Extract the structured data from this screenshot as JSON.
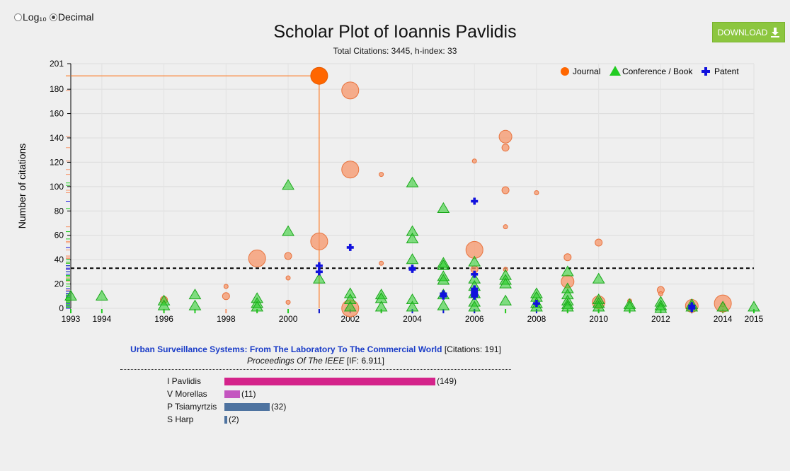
{
  "scale_toggle": {
    "options": [
      {
        "label": "Log₁₀",
        "checked": false
      },
      {
        "label": "Decimal",
        "checked": true
      }
    ]
  },
  "header": {
    "title": "Scholar Plot of Ioannis Pavlidis",
    "subtitle": "Total Citations: 3445, h-index: 33"
  },
  "download": {
    "label": "DOWNLOAD"
  },
  "chart_data": {
    "type": "scatter",
    "title": "Scholar Plot of Ioannis Pavlidis",
    "ylabel": "Number of citations",
    "xlabel": "",
    "xlim": [
      1993,
      2015
    ],
    "ylim": [
      0,
      201
    ],
    "x_ticks": [
      1993,
      1994,
      1996,
      1998,
      2000,
      2002,
      2004,
      2006,
      2008,
      2010,
      2012,
      2014,
      2015
    ],
    "y_ticks": [
      0,
      20,
      40,
      60,
      80,
      100,
      120,
      140,
      160,
      180,
      201
    ],
    "h_index_line": 33,
    "legend_position": "top-right",
    "grid": true,
    "colors": {
      "journal": "#f7956a",
      "journal_selected": "#ff6600",
      "conference": "#22cc22",
      "patent": "#1111dd",
      "hline": "#000000"
    },
    "series": [
      {
        "name": "Journal",
        "points": [
          [
            1996,
            7,
            5
          ],
          [
            1998,
            10,
            5
          ],
          [
            1998,
            18,
            3
          ],
          [
            1999,
            41,
            12
          ],
          [
            2000,
            43,
            5
          ],
          [
            2000,
            25,
            3
          ],
          [
            2000,
            5,
            3
          ],
          [
            2001,
            55,
            12
          ],
          [
            2002,
            179,
            12
          ],
          [
            2002,
            114,
            12
          ],
          [
            2002,
            0,
            12
          ],
          [
            2003,
            110,
            3
          ],
          [
            2003,
            37,
            3
          ],
          [
            2006,
            48,
            12
          ],
          [
            2006,
            32,
            5
          ],
          [
            2006,
            121,
            3
          ],
          [
            2007,
            141,
            9
          ],
          [
            2007,
            132,
            5
          ],
          [
            2007,
            97,
            5
          ],
          [
            2007,
            67,
            3
          ],
          [
            2007,
            32,
            3
          ],
          [
            2008,
            95,
            3
          ],
          [
            2009,
            42,
            5
          ],
          [
            2009,
            22,
            9
          ],
          [
            2010,
            54,
            5
          ],
          [
            2010,
            5,
            9
          ],
          [
            2011,
            6,
            3
          ],
          [
            2012,
            15,
            5
          ],
          [
            2012,
            12,
            3
          ],
          [
            2013,
            2,
            9
          ],
          [
            2014,
            4,
            12
          ],
          [
            2014,
            3,
            3
          ]
        ]
      },
      {
        "name": "Journal (selected)",
        "points": [
          [
            2001,
            191,
            12
          ]
        ]
      },
      {
        "name": "Conference / Book",
        "points": [
          [
            1993,
            10
          ],
          [
            1994,
            10
          ],
          [
            1996,
            6
          ],
          [
            1996,
            2
          ],
          [
            1997,
            11
          ],
          [
            1997,
            2
          ],
          [
            1999,
            8
          ],
          [
            1999,
            4
          ],
          [
            1999,
            1
          ],
          [
            2000,
            101
          ],
          [
            2000,
            63
          ],
          [
            2001,
            24
          ],
          [
            2002,
            12
          ],
          [
            2002,
            7
          ],
          [
            2002,
            1
          ],
          [
            2003,
            11
          ],
          [
            2003,
            8
          ],
          [
            2003,
            1
          ],
          [
            2004,
            103
          ],
          [
            2004,
            63
          ],
          [
            2004,
            57
          ],
          [
            2004,
            40
          ],
          [
            2004,
            7
          ],
          [
            2004,
            1
          ],
          [
            2005,
            82
          ],
          [
            2005,
            37
          ],
          [
            2005,
            35
          ],
          [
            2005,
            26
          ],
          [
            2005,
            23
          ],
          [
            2005,
            11
          ],
          [
            2005,
            2
          ],
          [
            2006,
            38
          ],
          [
            2006,
            24
          ],
          [
            2006,
            18
          ],
          [
            2006,
            12
          ],
          [
            2006,
            5
          ],
          [
            2006,
            1
          ],
          [
            2007,
            27
          ],
          [
            2007,
            23
          ],
          [
            2007,
            20
          ],
          [
            2007,
            6
          ],
          [
            2008,
            12
          ],
          [
            2008,
            9
          ],
          [
            2008,
            4
          ],
          [
            2008,
            1
          ],
          [
            2009,
            30
          ],
          [
            2009,
            16
          ],
          [
            2009,
            11
          ],
          [
            2009,
            6
          ],
          [
            2009,
            3
          ],
          [
            2009,
            1
          ],
          [
            2010,
            24
          ],
          [
            2010,
            7
          ],
          [
            2010,
            4
          ],
          [
            2010,
            1
          ],
          [
            2011,
            3
          ],
          [
            2011,
            1
          ],
          [
            2012,
            5
          ],
          [
            2012,
            2
          ],
          [
            2012,
            0
          ],
          [
            2013,
            3
          ],
          [
            2013,
            1
          ],
          [
            2014,
            1
          ],
          [
            2015,
            1
          ]
        ]
      },
      {
        "name": "Patent",
        "points": [
          [
            2001,
            35
          ],
          [
            2001,
            30
          ],
          [
            2002,
            50
          ],
          [
            2004,
            33
          ],
          [
            2004,
            32
          ],
          [
            2005,
            12
          ],
          [
            2005,
            10
          ],
          [
            2006,
            88
          ],
          [
            2006,
            28
          ],
          [
            2006,
            16
          ],
          [
            2006,
            14
          ],
          [
            2006,
            12
          ],
          [
            2006,
            10
          ],
          [
            2008,
            4
          ],
          [
            2013,
            2
          ],
          [
            2013,
            0
          ]
        ]
      }
    ],
    "selected_point": {
      "year": 2001,
      "citations": 191
    }
  },
  "selected_paper": {
    "title": "Urban Surveillance Systems: From The Laboratory To The Commercial World",
    "citations_text": "[Citations: 191]",
    "venue": "Proceedings Of The IEEE",
    "impact_text": "[IF: 6.911]"
  },
  "authors": [
    {
      "name": "I Pavlidis",
      "count": 149,
      "count_text": "(149)",
      "color": "#d4238a"
    },
    {
      "name": "V Morellas",
      "count": 11,
      "count_text": "(11)",
      "color": "#c455c0"
    },
    {
      "name": "P Tsiamyrtzis",
      "count": 32,
      "count_text": "(32)",
      "color": "#4e73a0"
    },
    {
      "name": "S Harp",
      "count": 2,
      "count_text": "(2)",
      "color": "#4e73a0"
    }
  ]
}
